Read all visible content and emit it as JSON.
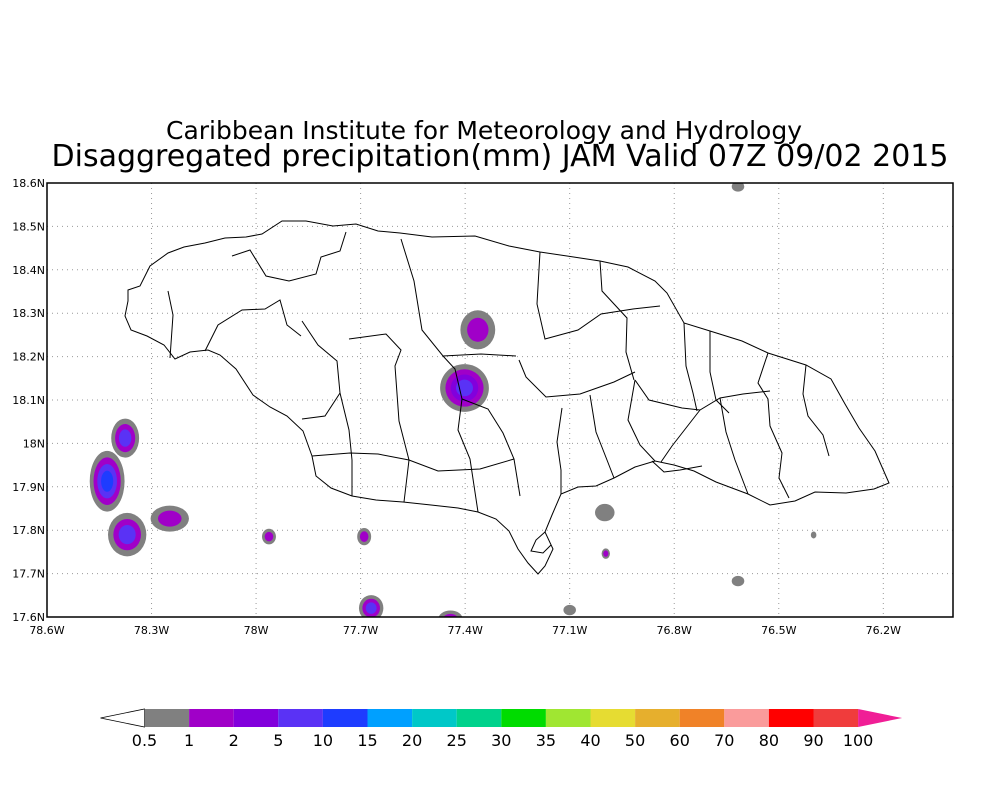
{
  "title_line1": "Caribbean Institute for Meteorology and Hydrology",
  "title_line2": "Disaggregated precipitation(mm) JAM Valid 07Z 09/02 2015",
  "lat_labels": [
    "18.6N",
    "18.5N",
    "18.4N",
    "18.3N",
    "18.2N",
    "18.1N",
    "18N",
    "17.9N",
    "17.8N",
    "17.7N",
    "17.6N"
  ],
  "lon_labels": [
    "78.6W",
    "78.3W",
    "78W",
    "77.7W",
    "77.4W",
    "77.1W",
    "76.8W",
    "76.5W",
    "76.2W"
  ],
  "map_extent": {
    "lon_min": -78.6,
    "lon_max": -76.0,
    "lat_min": 17.6,
    "lat_max": 18.6
  },
  "colorbar": {
    "labels": [
      "0.5",
      "1",
      "2",
      "5",
      "10",
      "15",
      "20",
      "25",
      "30",
      "35",
      "40",
      "50",
      "60",
      "70",
      "80",
      "90",
      "100"
    ],
    "colors": [
      "#808080",
      "#a000c8",
      "#8200dc",
      "#5a32f5",
      "#1e3cff",
      "#00a0ff",
      "#00c8c8",
      "#00d28c",
      "#00dc00",
      "#a0e632",
      "#e6dc32",
      "#e6af2d",
      "#f08228",
      "#fa9b9b",
      "#ff0000",
      "#f03c3c",
      "#f01e96"
    ]
  },
  "rain_cells": [
    {
      "lon": -77.3637,
      "lat": 18.2617,
      "rx": 0.05,
      "ry": 0.045,
      "levels": [
        "#808080",
        "#a000c8"
      ]
    },
    {
      "lon": -77.4019,
      "lat": 18.1277,
      "rx": 0.07,
      "ry": 0.055,
      "levels": [
        "#808080",
        "#a000c8",
        "#8200dc",
        "#5a32f5"
      ]
    },
    {
      "lon": -78.3757,
      "lat": 18.0122,
      "rx": 0.04,
      "ry": 0.045,
      "levels": [
        "#808080",
        "#a000c8",
        "#5a32f5"
      ]
    },
    {
      "lon": -78.4274,
      "lat": 17.9129,
      "rx": 0.05,
      "ry": 0.07,
      "levels": [
        "#808080",
        "#a000c8",
        "#5a32f5",
        "#1e3cff"
      ]
    },
    {
      "lon": -78.3699,
      "lat": 17.7898,
      "rx": 0.055,
      "ry": 0.05,
      "levels": [
        "#808080",
        "#a000c8",
        "#5a32f5"
      ]
    },
    {
      "lon": -78.2477,
      "lat": 17.8267,
      "rx": 0.055,
      "ry": 0.03,
      "levels": [
        "#808080",
        "#a000c8"
      ]
    },
    {
      "lon": -77.963,
      "lat": 17.7852,
      "rx": 0.02,
      "ry": 0.018,
      "levels": [
        "#808080",
        "#a000c8"
      ]
    },
    {
      "lon": -77.6898,
      "lat": 17.7852,
      "rx": 0.02,
      "ry": 0.02,
      "levels": [
        "#808080",
        "#a000c8"
      ]
    },
    {
      "lon": -77.6697,
      "lat": 17.6205,
      "rx": 0.035,
      "ry": 0.03,
      "levels": [
        "#808080",
        "#a000c8",
        "#5a32f5"
      ]
    },
    {
      "lon": -77.4421,
      "lat": 17.595,
      "rx": 0.035,
      "ry": 0.02,
      "levels": [
        "#808080",
        "#a000c8"
      ]
    },
    {
      "lon": -76.9993,
      "lat": 17.8406,
      "rx": 0.028,
      "ry": 0.02,
      "levels": [
        "#808080"
      ]
    },
    {
      "lon": -76.9964,
      "lat": 17.746,
      "rx": 0.012,
      "ry": 0.012,
      "levels": [
        "#808080",
        "#a000c8"
      ]
    },
    {
      "lon": -77.1,
      "lat": 17.616,
      "rx": 0.018,
      "ry": 0.012,
      "levels": [
        "#808080"
      ]
    },
    {
      "lon": -76.617,
      "lat": 17.6828,
      "rx": 0.018,
      "ry": 0.012,
      "levels": [
        "#808080"
      ]
    },
    {
      "lon": -76.4,
      "lat": 17.789,
      "rx": 0.008,
      "ry": 0.008,
      "levels": [
        "#808080"
      ]
    },
    {
      "lon": -76.617,
      "lat": 18.592,
      "rx": 0.018,
      "ry": 0.012,
      "levels": [
        "#808080"
      ]
    }
  ]
}
